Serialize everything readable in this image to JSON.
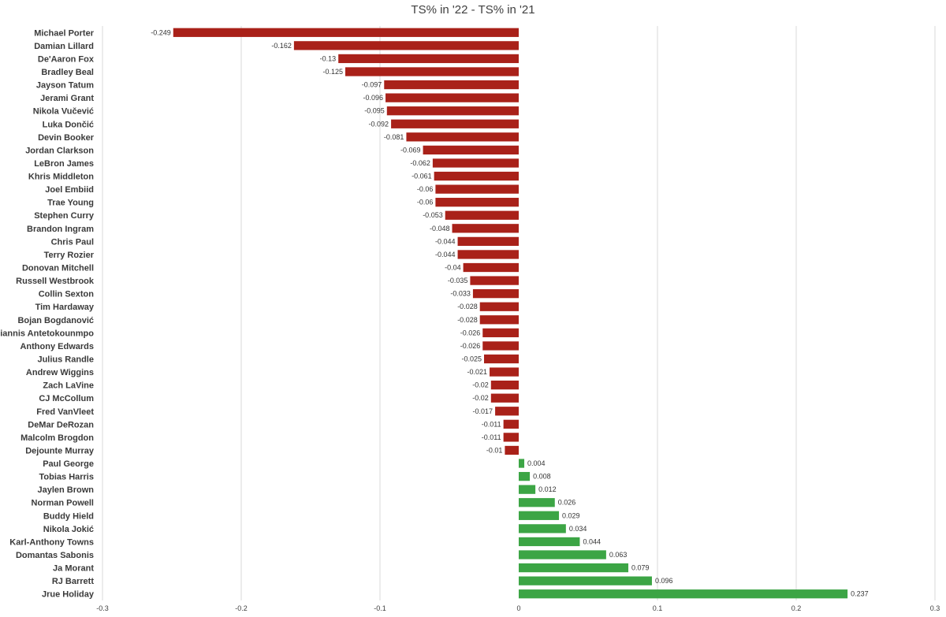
{
  "chart_data": {
    "type": "bar",
    "orientation": "horizontal",
    "title": "TS% in '22 - TS% in '21",
    "xlabel": "",
    "ylabel": "",
    "xlim": [
      -0.3,
      0.3
    ],
    "x_ticks": [
      "-0.3",
      "-0.2",
      "-0.1",
      "0",
      "0.1",
      "0.2",
      "0.3"
    ],
    "grid": true,
    "colors": {
      "negative": "#A92119",
      "positive": "#3CA545",
      "grid": "#D9D9D9"
    },
    "categories": [
      "Michael Porter",
      "Damian Lillard",
      "De'Aaron Fox",
      "Bradley Beal",
      "Jayson Tatum",
      "Jerami Grant",
      "Nikola Vučević",
      "Luka Dončić",
      "Devin Booker",
      "Jordan Clarkson",
      "LeBron James",
      "Khris Middleton",
      "Joel Embiid",
      "Trae Young",
      "Stephen Curry",
      "Brandon Ingram",
      "Chris Paul",
      "Terry Rozier",
      "Donovan Mitchell",
      "Russell Westbrook",
      "Collin Sexton",
      "Tim Hardaway",
      "Bojan Bogdanović",
      "Giannis Antetokounmpo",
      "Anthony Edwards",
      "Julius Randle",
      "Andrew Wiggins",
      "Zach LaVine",
      "CJ McCollum",
      "Fred VanVleet",
      "DeMar DeRozan",
      "Malcolm Brogdon",
      "Dejounte Murray",
      "Paul George",
      "Tobias Harris",
      "Jaylen Brown",
      "Norman Powell",
      "Buddy Hield",
      "Nikola Jokić",
      "Karl-Anthony Towns",
      "Domantas Sabonis",
      "Ja Morant",
      "RJ Barrett",
      "Jrue Holiday"
    ],
    "values": [
      -0.249,
      -0.162,
      -0.13,
      -0.125,
      -0.097,
      -0.096,
      -0.095,
      -0.092,
      -0.081,
      -0.069,
      -0.062,
      -0.061,
      -0.06,
      -0.06,
      -0.053,
      -0.048,
      -0.044,
      -0.044,
      -0.04,
      -0.035,
      -0.033,
      -0.028,
      -0.028,
      -0.026,
      -0.026,
      -0.025,
      -0.021,
      -0.02,
      -0.02,
      -0.017,
      -0.011,
      -0.011,
      -0.01,
      0.004,
      0.008,
      0.012,
      0.026,
      0.029,
      0.034,
      0.044,
      0.063,
      0.079,
      0.096,
      0.237
    ],
    "value_labels": [
      "-0.249",
      "-0.162",
      "-0.13",
      "-0.125",
      "-0.097",
      "-0.096",
      "-0.095",
      "-0.092",
      "-0.081",
      "-0.069",
      "-0.062",
      "-0.061",
      "-0.06",
      "-0.06",
      "-0.053",
      "-0.048",
      "-0.044",
      "-0.044",
      "-0.04",
      "-0.035",
      "-0.033",
      "-0.028",
      "-0.028",
      "-0.026",
      "-0.026",
      "-0.025",
      "-0.021",
      "-0.02",
      "-0.02",
      "-0.017",
      "-0.011",
      "-0.011",
      "-0.01",
      "0.004",
      "0.008",
      "0.012",
      "0.026",
      "0.029",
      "0.034",
      "0.044",
      "0.063",
      "0.079",
      "0.096",
      "0.237"
    ]
  }
}
